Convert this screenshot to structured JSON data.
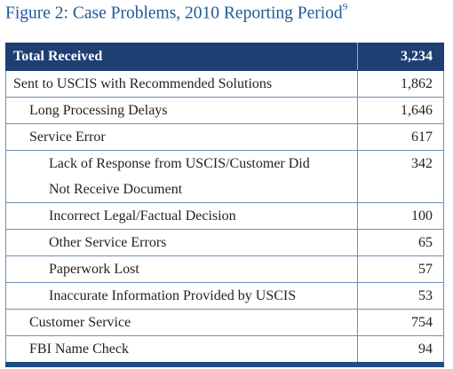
{
  "header": {
    "title": "Figure 2: Case Problems, 2010 Reporting Period",
    "footnote": "9"
  },
  "table": {
    "header": [
      "Total Received",
      "3,234"
    ],
    "rows": [
      [
        "Sent to USCIS with Recommended Solutions",
        "1,862"
      ],
      [
        "Long Processing Delays",
        "1,646"
      ],
      [
        "Service Error",
        "617"
      ],
      [
        "Lack of Response from USCIS/Customer Did Not Receive Document",
        "342"
      ],
      [
        "Incorrect Legal/Factual Decision",
        "100"
      ],
      [
        "Other Service Errors",
        "65"
      ],
      [
        "Paperwork Lost",
        "57"
      ],
      [
        "Inaccurate Information Provided by USCIS",
        "53"
      ],
      [
        "Customer Service",
        "754"
      ],
      [
        "FBI Name Check",
        "94"
      ]
    ]
  }
}
